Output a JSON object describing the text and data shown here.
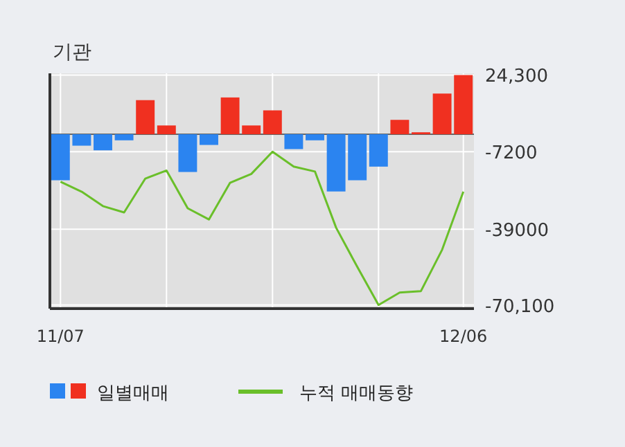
{
  "chart_data": {
    "type": "bar",
    "title": "기관",
    "categories": [
      "11/07",
      null,
      null,
      null,
      null,
      null,
      null,
      null,
      null,
      null,
      null,
      null,
      null,
      null,
      null,
      null,
      null,
      null,
      null,
      "12/06"
    ],
    "series": [
      {
        "name": "일별매매",
        "colors": [
          "#2b84f0",
          "#2b84f0",
          "#2b84f0",
          "#2b84f0",
          "#f03020",
          "#f03020",
          "#2b84f0",
          "#2b84f0",
          "#f03020",
          "#f03020",
          "#f03020",
          "#2b84f0",
          "#2b84f0",
          "#2b84f0",
          "#2b84f0",
          "#2b84f0",
          "#f03020",
          "#f03020",
          "#f03020",
          "#f03020"
        ],
        "values": [
          -18900,
          -4700,
          -6600,
          -2500,
          14000,
          3600,
          -15500,
          -4400,
          15100,
          3600,
          9800,
          -6100,
          -2500,
          -23500,
          -18900,
          -13300,
          5900,
          800,
          16700,
          24300
        ]
      },
      {
        "name": "누적 매매동향",
        "type": "line",
        "color": "#6abf2a",
        "values": [
          -19500,
          -23600,
          -29500,
          -32100,
          -18200,
          -14900,
          -30400,
          -35000,
          -19900,
          -16300,
          -7200,
          -13300,
          -15300,
          -38400,
          -54500,
          -70100,
          -65000,
          -64400,
          -47400,
          -23600
        ]
      }
    ],
    "ylim": [
      -71600,
      25000
    ],
    "yticks": [
      {
        "value": 24300,
        "label": "24,300"
      },
      {
        "value": -7200,
        "label": "-7200"
      },
      {
        "value": -39000,
        "label": "-39000"
      },
      {
        "value": -70100,
        "label": "-70,100"
      }
    ],
    "grid": true,
    "legend": "bottom"
  }
}
